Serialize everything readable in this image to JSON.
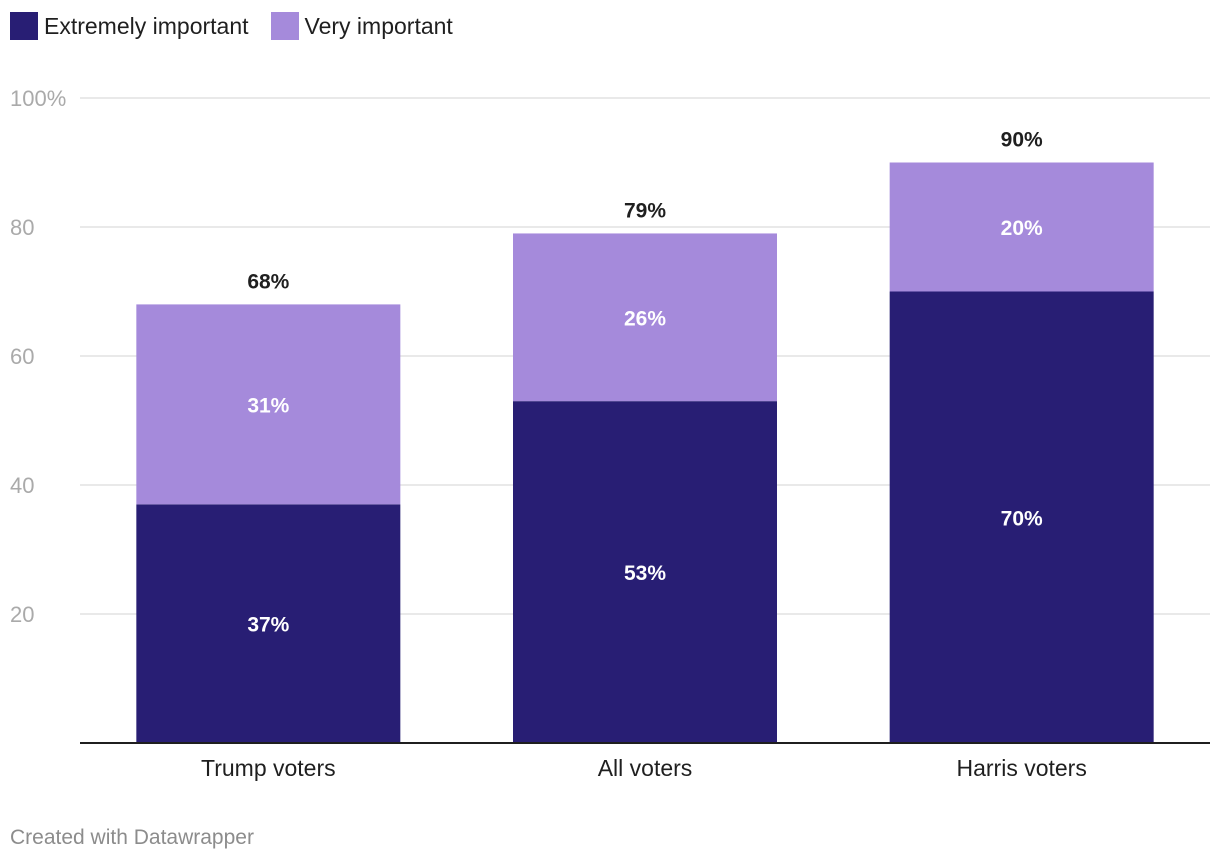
{
  "legend": [
    {
      "label": "Extremely important",
      "color": "#281e74"
    },
    {
      "label": "Very important",
      "color": "#a58adb"
    }
  ],
  "chart_data": {
    "type": "bar",
    "stacked": true,
    "categories": [
      "Trump voters",
      "All voters",
      "Harris voters"
    ],
    "series": [
      {
        "name": "Extremely important",
        "color": "#281e74",
        "values": [
          37,
          53,
          70
        ],
        "labels": [
          "37%",
          "53%",
          "70%"
        ]
      },
      {
        "name": "Very important",
        "color": "#a58adb",
        "values": [
          31,
          26,
          20
        ],
        "labels": [
          "31%",
          "26%",
          "20%"
        ]
      }
    ],
    "totals": [
      68,
      79,
      90
    ],
    "total_labels": [
      "68%",
      "79%",
      "90%"
    ],
    "ylim": [
      0,
      100
    ],
    "yticks": [
      20,
      40,
      60,
      80,
      100
    ],
    "ytick_labels": [
      "20",
      "40",
      "60",
      "80",
      "100%"
    ],
    "grid": true,
    "legend_position": "top-left",
    "title": "",
    "xlabel": "",
    "ylabel": ""
  },
  "footer": {
    "credit": "Created with Datawrapper"
  }
}
